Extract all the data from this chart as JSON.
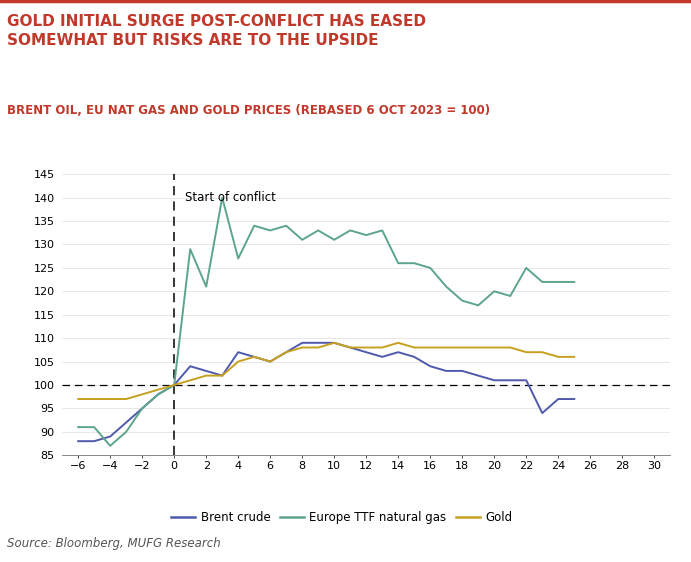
{
  "title": "GOLD INITIAL SURGE POST-CONFLICT HAS EASED\nSOMEWHAT BUT RISKS ARE TO THE UPSIDE",
  "subtitle": "BRENT OIL, EU NAT GAS AND GOLD PRICES (REBASED 6 OCT 2023 = 100)",
  "source": "Source: Bloomberg, MUFG Research",
  "annotation": "Start of conflict",
  "xlim": [
    -7,
    31
  ],
  "ylim": [
    85,
    145
  ],
  "yticks": [
    85,
    90,
    95,
    100,
    105,
    110,
    115,
    120,
    125,
    130,
    135,
    140,
    145
  ],
  "xticks": [
    -6,
    -4,
    -2,
    0,
    2,
    4,
    6,
    8,
    10,
    12,
    14,
    16,
    18,
    20,
    22,
    24,
    26,
    28,
    30
  ],
  "brent_x": [
    -6,
    -5,
    -4,
    -3,
    -2,
    -1,
    0,
    1,
    2,
    3,
    4,
    5,
    6,
    7,
    8,
    9,
    10,
    11,
    12,
    13,
    14,
    15,
    16,
    17,
    18,
    19,
    20,
    21,
    22,
    23,
    24,
    25
  ],
  "brent_y": [
    88,
    88,
    89,
    92,
    95,
    98,
    100,
    104,
    103,
    102,
    107,
    106,
    105,
    107,
    109,
    109,
    109,
    108,
    107,
    106,
    107,
    106,
    104,
    103,
    103,
    102,
    101,
    101,
    101,
    94,
    97,
    97
  ],
  "gas_x": [
    -6,
    -5,
    -4,
    -3,
    -2,
    -1,
    0,
    1,
    2,
    3,
    4,
    5,
    6,
    7,
    8,
    9,
    10,
    11,
    12,
    13,
    14,
    15,
    16,
    17,
    18,
    19,
    20,
    21,
    22,
    23,
    24,
    25
  ],
  "gas_y": [
    91,
    91,
    87,
    90,
    95,
    98,
    100,
    129,
    121,
    140,
    127,
    134,
    133,
    134,
    131,
    133,
    131,
    133,
    132,
    133,
    126,
    126,
    125,
    121,
    118,
    117,
    120,
    119,
    125,
    122,
    122,
    122
  ],
  "gold_x": [
    -6,
    -5,
    -4,
    -3,
    -2,
    -1,
    0,
    1,
    2,
    3,
    4,
    5,
    6,
    7,
    8,
    9,
    10,
    11,
    12,
    13,
    14,
    15,
    16,
    17,
    18,
    19,
    20,
    21,
    22,
    23,
    24,
    25
  ],
  "gold_y": [
    97,
    97,
    97,
    97,
    98,
    99,
    100,
    101,
    102,
    102,
    105,
    106,
    105,
    107,
    108,
    108,
    109,
    108,
    108,
    108,
    109,
    108,
    108,
    108,
    108,
    108,
    108,
    108,
    107,
    107,
    106,
    106
  ],
  "brent_color": "#4f5aad",
  "gas_color": "#5da58a",
  "gold_color": "#c8a020",
  "title_color": "#c0392b",
  "subtitle_color": "#c0392b",
  "source_color": "#555555",
  "background_color": "#ffffff",
  "top_border_color": "#c0392b"
}
